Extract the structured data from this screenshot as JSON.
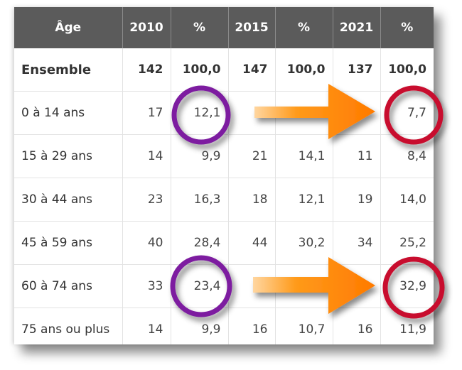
{
  "chart_data": {
    "type": "table",
    "columns": [
      "Âge",
      "2010",
      "%",
      "2015",
      "%",
      "2021",
      "%"
    ],
    "rows": [
      {
        "label": "Ensemble",
        "values": [
          "142",
          "100,0",
          "147",
          "100,0",
          "137",
          "100,0"
        ]
      },
      {
        "label": "0 à 14 ans",
        "values": [
          "17",
          "12,1",
          "",
          "",
          "",
          "7,7"
        ]
      },
      {
        "label": "15 à 29 ans",
        "values": [
          "14",
          "9,9",
          "21",
          "14,1",
          "11",
          "8,4"
        ]
      },
      {
        "label": "30 à 44 ans",
        "values": [
          "23",
          "16,3",
          "18",
          "12,1",
          "19",
          "14,0"
        ]
      },
      {
        "label": "45 à 59 ans",
        "values": [
          "40",
          "28,4",
          "44",
          "30,2",
          "34",
          "25,2"
        ]
      },
      {
        "label": "60 à 74 ans",
        "values": [
          "33",
          "23,4",
          "",
          "",
          "",
          "32,9"
        ]
      },
      {
        "label": "75 ans ou plus",
        "values": [
          "14",
          "9,9",
          "16",
          "10,7",
          "16",
          "11,9"
        ]
      }
    ],
    "highlights": [
      {
        "row": 1,
        "from_col": "2010 %",
        "to_col": "2021 %",
        "from_value": "12,1",
        "to_value": "7,7"
      },
      {
        "row": 5,
        "from_col": "2010 %",
        "to_col": "2021 %",
        "from_value": "23,4",
        "to_value": "32,9"
      }
    ]
  },
  "colors": {
    "header_bg": "#5b5b5b",
    "circle_from": "#7d1fa0",
    "circle_to": "#c8102e",
    "arrow": "#ff8a00"
  }
}
